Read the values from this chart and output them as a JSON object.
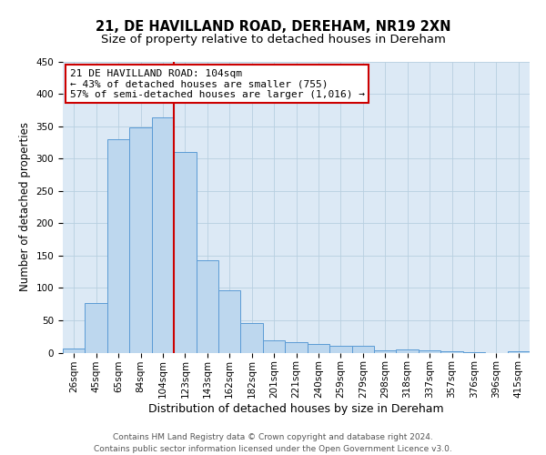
{
  "title": "21, DE HAVILLAND ROAD, DEREHAM, NR19 2XN",
  "subtitle": "Size of property relative to detached houses in Dereham",
  "xlabel": "Distribution of detached houses by size in Dereham",
  "ylabel": "Number of detached properties",
  "bar_labels": [
    "26sqm",
    "45sqm",
    "65sqm",
    "84sqm",
    "104sqm",
    "123sqm",
    "143sqm",
    "162sqm",
    "182sqm",
    "201sqm",
    "221sqm",
    "240sqm",
    "259sqm",
    "279sqm",
    "298sqm",
    "318sqm",
    "337sqm",
    "357sqm",
    "376sqm",
    "396sqm",
    "415sqm"
  ],
  "bar_values": [
    6,
    76,
    330,
    348,
    364,
    310,
    143,
    97,
    46,
    19,
    16,
    13,
    10,
    10,
    4,
    5,
    4,
    2,
    1,
    0,
    2
  ],
  "bar_color": "#bdd7ee",
  "bar_edge_color": "#5b9bd5",
  "vline_x_idx": 4,
  "vline_color": "#cc0000",
  "annotation_title": "21 DE HAVILLAND ROAD: 104sqm",
  "annotation_line1": "← 43% of detached houses are smaller (755)",
  "annotation_line2": "57% of semi-detached houses are larger (1,016) →",
  "annotation_box_color": "#ffffff",
  "annotation_box_edge_color": "#cc0000",
  "ylim": [
    0,
    450
  ],
  "yticks": [
    0,
    50,
    100,
    150,
    200,
    250,
    300,
    350,
    400,
    450
  ],
  "background_color": "#ffffff",
  "axes_bg_color": "#dce9f5",
  "grid_color": "#b8cfe0",
  "footer_line1": "Contains HM Land Registry data © Crown copyright and database right 2024.",
  "footer_line2": "Contains public sector information licensed under the Open Government Licence v3.0.",
  "title_fontsize": 10.5,
  "subtitle_fontsize": 9.5,
  "xlabel_fontsize": 9,
  "ylabel_fontsize": 8.5,
  "tick_fontsize": 7.5,
  "annotation_fontsize": 8,
  "footer_fontsize": 6.5
}
